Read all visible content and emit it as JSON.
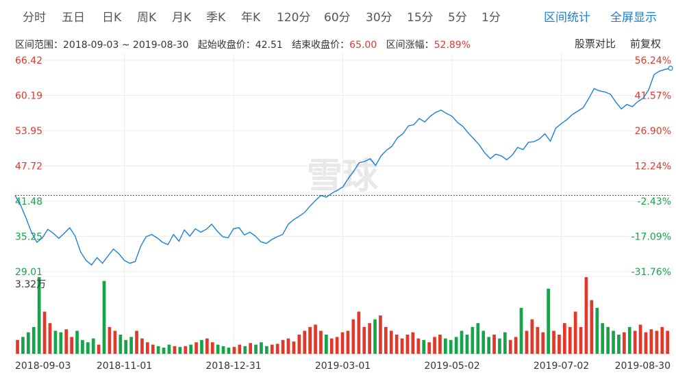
{
  "toolbar": {
    "tabs": [
      "分时",
      "五日",
      "日K",
      "周K",
      "月K",
      "季K",
      "年K",
      "120分",
      "60分",
      "30分",
      "15分",
      "5分",
      "1分"
    ],
    "range_stats": "区间统计",
    "fullscreen": "全屏显示"
  },
  "info": {
    "range_label": "区间范围：",
    "range_value": "2018-09-03 ~ 2019-08-30",
    "start_label": "起始收盘价：",
    "start_value": "42.51",
    "end_label": "结束收盘价：",
    "end_value": "65.00",
    "change_label": "区间涨幅：",
    "change_value": "52.89%",
    "compare": "股票对比",
    "adjust": "前复权"
  },
  "watermark": "雪球",
  "colors": {
    "line": "#1a7fd6",
    "up": "#e0392b",
    "down": "#16a34a",
    "grid": "#ececec",
    "action": "#1a7fd6"
  },
  "chart_data": {
    "type": "line",
    "x_labels": [
      "2018-09-03",
      "2018-11-01",
      "2018-12-31",
      "2019-03-01",
      "2019-05-02",
      "2019-07-02",
      "2019-08-30"
    ],
    "price_ticks_left": [
      "66.42",
      "60.19",
      "53.95",
      "47.72",
      "41.48",
      "35.25",
      "29.01"
    ],
    "pct_ticks_right": [
      "56.24%",
      "41.57%",
      "26.90%",
      "12.24%",
      "-2.43%",
      "-17.09%",
      "-31.76%"
    ],
    "ylim": [
      29.01,
      66.42
    ],
    "baseline": 42.51,
    "volume_max_label": "3.32万",
    "price_series": [
      42.51,
      40.8,
      38.5,
      36.0,
      34.2,
      35.0,
      36.5,
      35.8,
      34.9,
      35.8,
      36.8,
      35.3,
      32.5,
      31.0,
      30.2,
      31.5,
      30.5,
      31.8,
      33.0,
      32.2,
      31.0,
      30.5,
      30.8,
      33.5,
      35.2,
      35.6,
      35.0,
      34.2,
      33.8,
      35.6,
      34.4,
      36.4,
      35.3,
      36.6,
      36.0,
      36.5,
      37.4,
      36.2,
      35.2,
      35.0,
      36.6,
      36.8,
      35.5,
      36.0,
      35.3,
      34.3,
      34.0,
      34.7,
      35.2,
      35.6,
      37.4,
      38.2,
      38.8,
      39.5,
      40.6,
      41.6,
      42.5,
      42.2,
      42.9,
      43.4,
      44.0,
      45.5,
      46.8,
      48.3,
      48.5,
      49.0,
      47.8,
      49.5,
      50.5,
      51.2,
      52.7,
      53.4,
      54.8,
      55.0,
      56.1,
      55.5,
      56.5,
      57.2,
      57.6,
      57.0,
      56.5,
      55.4,
      54.7,
      53.5,
      52.5,
      51.4,
      50.0,
      49.0,
      49.8,
      49.5,
      48.8,
      49.6,
      51.0,
      50.6,
      51.9,
      52.0,
      52.5,
      53.4,
      52.1,
      54.4,
      55.2,
      55.9,
      56.8,
      57.4,
      58.0,
      59.6,
      61.4,
      61.0,
      60.8,
      60.4,
      59.0,
      57.8,
      58.6,
      58.2,
      59.1,
      59.7,
      61.2,
      63.9,
      64.5,
      64.8,
      65.0
    ],
    "volume_series": [
      0.18,
      0.22,
      0.28,
      0.35,
      1.0,
      0.55,
      0.4,
      0.3,
      0.28,
      0.32,
      0.22,
      0.3,
      0.18,
      0.15,
      0.2,
      0.12,
      0.95,
      0.35,
      0.3,
      0.25,
      0.18,
      0.22,
      0.3,
      0.2,
      0.15,
      0.12,
      0.1,
      0.08,
      0.12,
      0.1,
      0.09,
      0.1,
      0.12,
      0.15,
      0.18,
      0.2,
      0.15,
      0.12,
      0.1,
      0.08,
      0.09,
      0.12,
      0.1,
      0.14,
      0.12,
      0.15,
      0.1,
      0.12,
      0.13,
      0.18,
      0.2,
      0.16,
      0.25,
      0.3,
      0.35,
      0.38,
      0.3,
      0.25,
      0.2,
      0.22,
      0.28,
      0.3,
      0.45,
      0.55,
      0.35,
      0.4,
      0.45,
      0.5,
      0.35,
      0.3,
      0.25,
      0.2,
      0.25,
      0.28,
      0.2,
      0.18,
      0.15,
      0.22,
      0.25,
      0.2,
      0.18,
      0.22,
      0.3,
      0.25,
      0.35,
      0.4,
      0.3,
      0.22,
      0.25,
      0.2,
      0.28,
      0.18,
      0.22,
      0.6,
      0.3,
      0.45,
      0.35,
      0.28,
      0.85,
      0.3,
      0.25,
      0.4,
      0.35,
      0.55,
      0.35,
      1.0,
      0.7,
      0.6,
      0.4,
      0.35,
      0.3,
      0.25,
      0.28,
      0.35,
      0.3,
      0.38,
      0.28,
      0.32,
      0.3,
      0.35,
      0.3
    ]
  }
}
